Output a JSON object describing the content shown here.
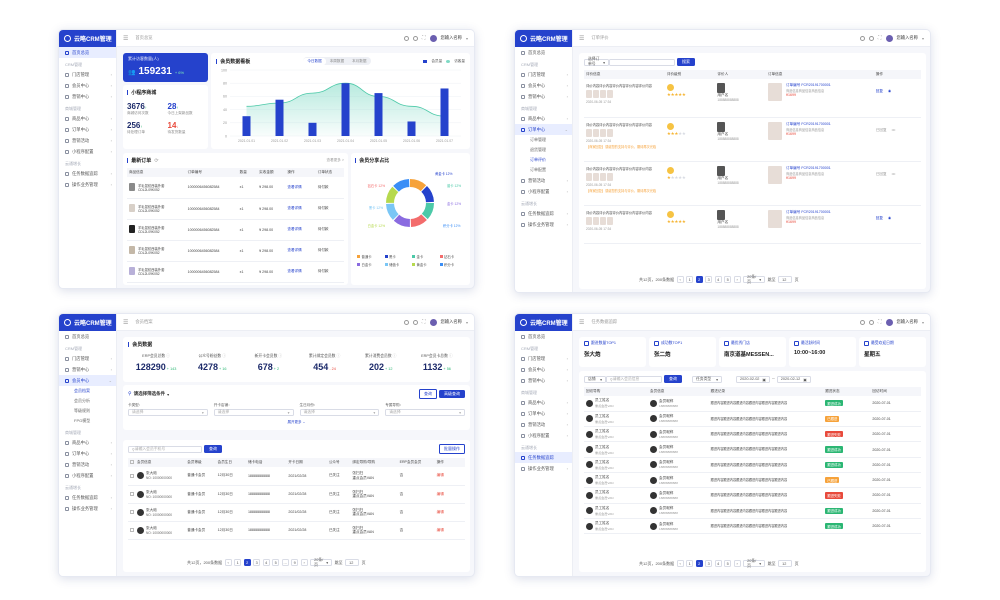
{
  "app": {
    "logo": "云略CRM管理",
    "user": "您输入名称"
  },
  "sidebar_common": {
    "groups": [
      "CRM管理",
      "商城管理",
      "云通增长"
    ],
    "home": "首页总览",
    "items_crm": [
      "门店管理",
      "会员中心",
      "营销中心"
    ],
    "items_mall": [
      "商品中心",
      "订单中心",
      "营销活动",
      "小程序配置"
    ],
    "items_growth": [
      "任务数据追踪",
      "操作业务管理"
    ]
  },
  "p1": {
    "breadcrumb": "首页总览",
    "total_label": "累计访客数量(人)",
    "total_value": "159231",
    "total_change": "+ 6%",
    "mini_title": "小程序商城",
    "mini_stats": [
      {
        "value": "3676",
        "arrow": "↑",
        "label": "商城访问次数"
      },
      {
        "value": "28",
        "arrow": "↑",
        "label": "今日上架新品数"
      },
      {
        "value": "256",
        "arrow": "↑",
        "label": "待处理订单"
      },
      {
        "value": "14",
        "arrow": "↓",
        "label": "待发货数量"
      }
    ],
    "visit_title": "会员数据看板",
    "visit_tabs": [
      "今日数据",
      "本周数据",
      "本月数据"
    ],
    "legend": [
      "会员量",
      "访客量"
    ],
    "orders_title": "最新订单",
    "orders_more": "查看更多 >",
    "order_cols": [
      "商品信息",
      "订单编号",
      "数量",
      "实收金额",
      "操作",
      "订单状态"
    ],
    "orders": [
      {
        "name": "羊毛混纺西装外套 CDL2L09K052",
        "no": "1000006456082584",
        "qty": "x1",
        "amt": "¥ 298.00",
        "op": "查看详情",
        "st": "待付款"
      },
      {
        "name": "羊毛混纺西装外套 CDL2L09K052",
        "no": "1000006456082584",
        "qty": "x1",
        "amt": "¥ 298.00",
        "op": "查看详情",
        "st": "待付款"
      },
      {
        "name": "羊毛混纺西装外套 CDL2L09K052",
        "no": "1000006456082584",
        "qty": "x1",
        "amt": "¥ 298.00",
        "op": "查看详情",
        "st": "待付款"
      },
      {
        "name": "羊毛混纺西装外套 CDL2L09K052",
        "no": "1000006456082584",
        "qty": "x1",
        "amt": "¥ 298.00",
        "op": "查看详情",
        "st": "待付款"
      },
      {
        "name": "羊毛混纺西装外套 CDL2L09K052",
        "no": "1000006456082584",
        "qty": "x1",
        "amt": "¥ 298.00",
        "op": "查看详情",
        "st": "待付款"
      }
    ],
    "share_title": "会员分享占比",
    "donut_labels": [
      "黄金卡 12%",
      "普卡 12%",
      "钻石卡 12%",
      "金卡 12%",
      "黑卡 12%",
      "白金卡 12%",
      "积分卡 12%"
    ],
    "donut_legend": [
      "普通卡",
      "黑卡",
      "金卡",
      "钻石卡",
      "白金卡",
      "储值卡",
      "黄金卡",
      "积分卡"
    ]
  },
  "p2": {
    "breadcrumb": "订单评价",
    "search_sel": "选择订单号",
    "search_btn": "搜索",
    "cols": [
      "评价信息",
      "评价级别",
      "评价人",
      "订单信息",
      "操作"
    ],
    "rows": [
      {
        "text": "评价内容评价内容评价内容评价内容评价内容",
        "date": "2020-06-05 17:34",
        "rate": 5,
        "rname": "用户名",
        "phone": "188888888888",
        "ono": "订单编号 FCR20191700001",
        "oinfo": "商品信息商品信息商品信息",
        "price": "¥1699",
        "op": "回复"
      },
      {
        "text": "评价内容评价内容评价内容评价内容评价内容",
        "date": "2020-06-05 17:34",
        "rate": 3,
        "rname": "用户名",
        "phone": "188888888888",
        "ono": "订单编号 FCR20191700001",
        "oinfo": "商品信息商品信息商品信息",
        "price": "¥1699",
        "op": "已回复",
        "reply": "【商家回复】感谢您的支持与评价，期待再次光临"
      },
      {
        "text": "评价内容评价内容评价内容评价内容评价内容",
        "date": "2020-06-05 17:34",
        "rate": 1,
        "rname": "用户名",
        "phone": "188888888888",
        "ono": "订单编号 FCR20191700001",
        "oinfo": "商品信息商品信息商品信息",
        "price": "¥1699",
        "op": "已回复",
        "reply": "【商家回复】感谢您的支持与评价，期待再次光临"
      },
      {
        "text": "评价内容评价内容评价内容评价内容评价内容",
        "date": "2020-06-05 17:34",
        "rate": 5,
        "rname": "用户名",
        "phone": "188888888888",
        "ono": "订单编号 FCR20191700001",
        "oinfo": "商品信息商品信息商品信息",
        "price": "¥1699",
        "op": "回复"
      }
    ],
    "pager_total": "共12页，200条数据",
    "pager_pages": [
      "1",
      "2",
      "3",
      "4",
      "5"
    ],
    "pager_size": "20条/页",
    "pager_goto": "跳至",
    "pager_num": "12",
    "pager_unit": "页",
    "sub_items": [
      "订单管理",
      "退货管理",
      "订单评价",
      "订单配置"
    ]
  },
  "p3": {
    "breadcrumb": "会员档案",
    "stats_title": "会员数据",
    "stats": [
      {
        "label": "ERP会员总数",
        "value": "128290",
        "delta": "+ 143",
        "up": true
      },
      {
        "label": "公众号粉丝数",
        "value": "4278",
        "delta": "+ 16",
        "up": true
      },
      {
        "label": "新开卡会员数",
        "value": "678",
        "delta": "+ 2",
        "up": true
      },
      {
        "label": "累计绑定会员数",
        "value": "454",
        "delta": "- 24",
        "up": false
      },
      {
        "label": "累计消费会员数",
        "value": "202",
        "delta": "+ 12",
        "up": true
      },
      {
        "label": "ERP会员卡总数",
        "value": "1132",
        "delta": "+ 56",
        "up": true
      }
    ],
    "filter_title": "请选择筛选条件",
    "filter_btns": [
      "查询",
      "高级查询"
    ],
    "filters": [
      {
        "label": "卡类型：",
        "ph": "请选择"
      },
      {
        "label": "开卡店铺：",
        "ph": "请选择"
      },
      {
        "label": "生日月份：",
        "ph": "请选择"
      },
      {
        "label": "专属导购：",
        "ph": "请选择"
      }
    ],
    "expand": "展开更多",
    "search_ph": "请输入会员手机号",
    "search_btn": "查询",
    "export_btn": "批量操作",
    "cols": [
      "会员信息",
      "会员等级",
      "会员生日",
      "储卡电话",
      "开卡日期",
      "公众号",
      "绑定导购/导购",
      "ERP会员会员",
      "操作"
    ],
    "rows": [
      {
        "name": "张大炮",
        "no": "NO: 10000000000",
        "lvl": "普通卡会员",
        "bd": "12月30日",
        "tel": "18888888888",
        "date": "2021/02/28",
        "wx": "已关注",
        "guide": "张扫扫\n重点会员VAN",
        "erp": "否",
        "op": "编辑"
      },
      {
        "name": "张大炮",
        "no": "NO: 10000000000",
        "lvl": "普通卡会员",
        "bd": "12月30日",
        "tel": "18888888888",
        "date": "2021/02/28",
        "wx": "已关注",
        "guide": "张扫扫\n重点会员VAN",
        "erp": "否",
        "op": "编辑"
      },
      {
        "name": "张大炮",
        "no": "NO: 10000000000",
        "lvl": "普通卡会员",
        "bd": "12月30日",
        "tel": "18888888888",
        "date": "2021/02/28",
        "wx": "已关注",
        "guide": "张扫扫\n重点会员VAN",
        "erp": "否",
        "op": "编辑"
      },
      {
        "name": "张大炮",
        "no": "NO: 10000000000",
        "lvl": "普通卡会员",
        "bd": "12月30日",
        "tel": "18888888888",
        "date": "2021/02/28",
        "wx": "已关注",
        "guide": "张扫扫\n重点会员VAN",
        "erp": "否",
        "op": "编辑"
      }
    ],
    "pager_total": "共12页，200条数据",
    "pager_pages": [
      "1",
      "2",
      "3",
      "4",
      "5",
      "...",
      "9"
    ],
    "pager_size": "20条/页",
    "pager_goto": "跳至",
    "pager_num": "12",
    "pager_unit": "页",
    "sub_items": [
      "会员档案",
      "会员分析",
      "等级规则",
      "FPG模型"
    ]
  },
  "p4": {
    "breadcrumb": "任务数据追踪",
    "tops": [
      {
        "label": "跟进数量TOP1",
        "value": "张大炮"
      },
      {
        "label": "成功数TOP1",
        "value": "张二炮"
      },
      {
        "label": "最优秀门店",
        "value": "南京道基MESSEN..."
      },
      {
        "label": "最活跃时间",
        "value": "10:00~16:00"
      },
      {
        "label": "最受欢迎日期",
        "value": "星期五"
      }
    ],
    "filter_sel": "店铺",
    "filter_ph": "请输入会员信息",
    "filter_btn": "查询",
    "filter_type": "任务类型",
    "date_from": "2020-02-02",
    "date_to": "2020-02-12",
    "cols": [
      "回访导购",
      "会员信息",
      "跟进记录",
      "跟进状态",
      "回访时间"
    ],
    "rows": [
      {
        "g": "员工姓名",
        "gs": "重点会员VAN",
        "m": "会员昵称",
        "ms": "18888888888",
        "rec": "跟进内容跟进内容跟进内容跟进内容跟进内容跟进内容",
        "st": "跟进成功",
        "sc": "#2bb673",
        "t": "2020-07-01"
      },
      {
        "g": "员工姓名",
        "gs": "重点会员VAN",
        "m": "会员昵称",
        "ms": "18888888888",
        "rec": "跟进内容跟进内容跟进内容跟进内容跟进内容跟进内容",
        "st": "已跟进",
        "sc": "#f6a23a",
        "t": "2020-07-01"
      },
      {
        "g": "员工姓名",
        "gs": "重点会员VAN",
        "m": "会员昵称",
        "ms": "18888888888",
        "rec": "跟进内容跟进内容跟进内容跟进内容跟进内容跟进内容",
        "st": "跟进失败",
        "sc": "#e84a3c",
        "t": "2020-07-01"
      },
      {
        "g": "员工姓名",
        "gs": "重点会员VAN",
        "m": "会员昵称",
        "ms": "18888888888",
        "rec": "跟进内容跟进内容跟进内容跟进内容跟进内容跟进内容",
        "st": "跟进成功",
        "sc": "#2bb673",
        "t": "2020-07-01"
      },
      {
        "g": "员工姓名",
        "gs": "重点会员VAN",
        "m": "会员昵称",
        "ms": "18888888888",
        "rec": "跟进内容跟进内容跟进内容跟进内容跟进内容跟进内容",
        "st": "跟进成功",
        "sc": "#2bb673",
        "t": "2020-07-01"
      },
      {
        "g": "员工姓名",
        "gs": "重点会员VAN",
        "m": "会员昵称",
        "ms": "18888888888",
        "rec": "跟进内容跟进内容跟进内容跟进内容跟进内容跟进内容",
        "st": "已跟进",
        "sc": "#f6a23a",
        "t": "2020-07-01"
      },
      {
        "g": "员工姓名",
        "gs": "重点会员VAN",
        "m": "会员昵称",
        "ms": "18888888888",
        "rec": "跟进内容跟进内容跟进内容跟进内容跟进内容跟进内容",
        "st": "跟进失败",
        "sc": "#e84a3c",
        "t": "2020-07-01"
      },
      {
        "g": "员工姓名",
        "gs": "重点会员VAN",
        "m": "会员昵称",
        "ms": "18888888888",
        "rec": "跟进内容跟进内容跟进内容跟进内容跟进内容跟进内容",
        "st": "跟进成功",
        "sc": "#2bb673",
        "t": "2020-07-01"
      },
      {
        "g": "员工姓名",
        "gs": "重点会员VAN",
        "m": "会员昵称",
        "ms": "18888888888",
        "rec": "跟进内容跟进内容跟进内容跟进内容跟进内容跟进内容",
        "st": "跟进成功",
        "sc": "#2bb673",
        "t": "2020-07-01"
      }
    ],
    "pager_total": "共12页，200条数据",
    "pager_pages": [
      "1",
      "2",
      "3",
      "4",
      "5"
    ],
    "pager_size": "20条/页",
    "pager_goto": "跳至",
    "pager_num": "12",
    "pager_unit": "页"
  },
  "chart_data": {
    "type": "bar",
    "categories": [
      "2021.01.01",
      "2021.01.02",
      "2021.01.03",
      "2021.01.04",
      "2021.01.05",
      "2021.01.06",
      "2021.01.07"
    ],
    "series": [
      {
        "name": "会员量",
        "type": "bar",
        "values": [
          30,
          55,
          20,
          80,
          65,
          22,
          72
        ]
      },
      {
        "name": "访客量",
        "type": "area",
        "values": [
          45,
          50,
          65,
          80,
          60,
          45,
          30
        ]
      }
    ],
    "ylim": [
      0,
      100
    ],
    "yticks": [
      "100",
      "80",
      "60",
      "40",
      "20",
      "0"
    ],
    "colors": {
      "bar": "#2542cc",
      "area": "#7ed9c4"
    }
  }
}
